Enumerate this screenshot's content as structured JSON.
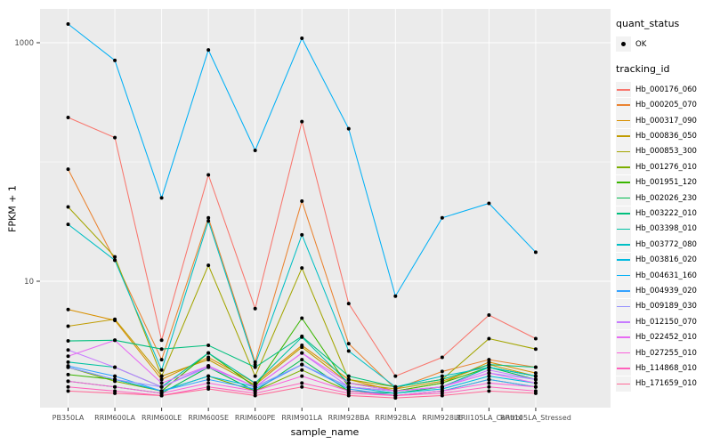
{
  "figure": {
    "bg": "#FFFFFF",
    "panel_bg": "#EBEBEB",
    "grid_color": "#FFFFFF",
    "tick_label_color": "#4D4D4D",
    "axis_title_color": "#000000",
    "x_axis_title": "sample_name",
    "y_axis_title": "FPKM + 1"
  },
  "legend": {
    "quant_status_title": "quant_status",
    "quant_status_items": [
      {
        "label": "OK",
        "symbol": "black-point"
      }
    ],
    "tracking_id_title": "tracking_id",
    "key_bg": "#F2F2F2"
  },
  "chart_data": {
    "type": "line",
    "title": "",
    "xlabel": "sample_name",
    "ylabel": "FPKM + 1",
    "y_scale": "log10",
    "ylim": [
      0.87,
      1900
    ],
    "y_ticks": [
      {
        "value": 1000,
        "label": "1000"
      },
      {
        "value": 10,
        "label": "10"
      }
    ],
    "y_minor_gridlines": [
      100
    ],
    "grid": true,
    "legend_position": "right",
    "point_color": "#000000",
    "categories": [
      "PB350LA",
      "RRIM600LA",
      "RRIM600LE",
      "RRIM600SE",
      "RRIM600PE",
      "RRIM901LA",
      "RRIM928BA",
      "RRIM928LA",
      "RRIM928LE",
      "RRII105LA_Control",
      "RRII105LA_Stressed"
    ],
    "series": [
      {
        "name": "Hb_000176_060",
        "color": "#F8766D",
        "values": [
          236,
          160,
          3.2,
          78,
          5.9,
          218,
          6.5,
          1.6,
          2.3,
          5.2,
          3.3
        ]
      },
      {
        "name": "Hb_000205_070",
        "color": "#EA8331",
        "values": [
          87,
          15,
          2.2,
          34,
          2.1,
          47,
          3.0,
          1.25,
          1.75,
          2.2,
          1.9
        ]
      },
      {
        "name": "Hb_000317_090",
        "color": "#D89000",
        "values": [
          5.8,
          4.7,
          1.5,
          2.3,
          1.4,
          2.9,
          1.5,
          1.2,
          1.4,
          2.1,
          1.7
        ]
      },
      {
        "name": "Hb_000836_050",
        "color": "#C09B00",
        "values": [
          4.2,
          4.8,
          1.6,
          2.2,
          1.35,
          2.8,
          1.4,
          1.25,
          1.45,
          2.0,
          1.6
        ]
      },
      {
        "name": "Hb_000853_300",
        "color": "#A3A500",
        "values": [
          42,
          16,
          1.6,
          13.6,
          1.6,
          12.9,
          1.5,
          1.3,
          1.5,
          3.3,
          2.7
        ]
      },
      {
        "name": "Hb_001276_010",
        "color": "#7CAE00",
        "values": [
          1.9,
          1.45,
          1.2,
          1.6,
          1.2,
          1.8,
          1.2,
          1.1,
          1.2,
          1.5,
          1.3
        ]
      },
      {
        "name": "Hb_001951_120",
        "color": "#39B600",
        "values": [
          1.65,
          1.5,
          1.2,
          2.5,
          1.3,
          4.9,
          1.3,
          1.2,
          1.4,
          1.9,
          1.6
        ]
      },
      {
        "name": "Hb_002026_230",
        "color": "#00BB4E",
        "values": [
          1.45,
          1.3,
          1.15,
          1.9,
          1.2,
          2.2,
          1.2,
          1.15,
          1.3,
          1.9,
          1.5
        ]
      },
      {
        "name": "Hb_003222_010",
        "color": "#00BF7D",
        "values": [
          3.16,
          3.2,
          2.7,
          2.9,
          1.9,
          3.45,
          1.6,
          1.3,
          1.5,
          2.0,
          1.9
        ]
      },
      {
        "name": "Hb_003398_010",
        "color": "#00C1A3",
        "values": [
          2.1,
          1.9,
          1.3,
          2.5,
          1.4,
          3.4,
          1.4,
          1.2,
          1.3,
          1.9,
          1.6
        ]
      },
      {
        "name": "Hb_003772_080",
        "color": "#00BFC4",
        "values": [
          30,
          15,
          1.8,
          32,
          2.0,
          24.5,
          2.6,
          1.3,
          1.6,
          1.9,
          1.6
        ]
      },
      {
        "name": "Hb_003816_020",
        "color": "#00BAE0",
        "values": [
          1.9,
          1.5,
          1.2,
          1.6,
          1.3,
          2.0,
          1.3,
          1.15,
          1.25,
          1.6,
          1.4
        ]
      },
      {
        "name": "Hb_004631_160",
        "color": "#00B0F6",
        "values": [
          1435,
          710,
          50,
          870,
          125,
          1090,
          190,
          7.5,
          34,
          45,
          17.5
        ]
      },
      {
        "name": "Hb_004939_020",
        "color": "#35A2FF",
        "values": [
          1.95,
          1.6,
          1.2,
          1.5,
          1.25,
          2.0,
          1.25,
          1.1,
          1.2,
          1.5,
          1.3
        ]
      },
      {
        "name": "Hb_009189_030",
        "color": "#9590FF",
        "values": [
          1.9,
          1.5,
          1.3,
          1.95,
          1.3,
          2.0,
          1.3,
          1.2,
          1.3,
          1.7,
          1.5
        ]
      },
      {
        "name": "Hb_012150_070",
        "color": "#C77CFF",
        "values": [
          2.65,
          1.9,
          1.3,
          1.9,
          1.3,
          2.5,
          1.3,
          1.2,
          1.3,
          1.8,
          1.5
        ]
      },
      {
        "name": "Hb_022452_010",
        "color": "#E76BF3",
        "values": [
          2.35,
          3.2,
          1.4,
          1.95,
          1.3,
          2.5,
          1.4,
          1.2,
          1.3,
          1.7,
          1.4
        ]
      },
      {
        "name": "Hb_027255_010",
        "color": "#FA62DB",
        "values": [
          1.45,
          1.3,
          1.15,
          1.4,
          1.2,
          1.6,
          1.2,
          1.1,
          1.2,
          1.4,
          1.3
        ]
      },
      {
        "name": "Hb_114868_010",
        "color": "#FF62BC",
        "values": [
          1.3,
          1.2,
          1.1,
          1.3,
          1.15,
          1.4,
          1.15,
          1.1,
          1.15,
          1.3,
          1.2
        ]
      },
      {
        "name": "Hb_171659_010",
        "color": "#FF6A98",
        "values": [
          1.2,
          1.15,
          1.1,
          1.25,
          1.1,
          1.3,
          1.1,
          1.05,
          1.1,
          1.2,
          1.15
        ]
      }
    ]
  }
}
